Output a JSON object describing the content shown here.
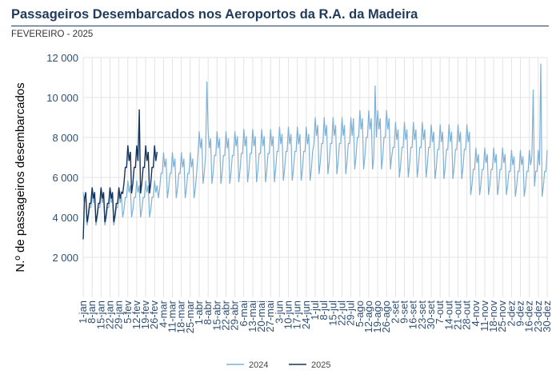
{
  "header": {
    "title": "Passageiros Desembarcados nos Aeroportos da R.A. da Madeira",
    "subtitle": "FEVEREIRO - 2025"
  },
  "colors": {
    "series_2024": "#7fb1d5",
    "series_2025": "#15345b",
    "axis_text": "#2e4f73",
    "grid": "#e3e3e3",
    "title": "#1f3b5a"
  },
  "chart_data": {
    "type": "line",
    "ylabel": "N.º de passageiros desembarcados",
    "xlabel": "",
    "ylim": [
      0,
      12000
    ],
    "yticks": [
      2000,
      4000,
      6000,
      8000,
      10000,
      12000
    ],
    "ytick_labels": [
      "2 000",
      "4 000",
      "6 000",
      "8 000",
      "10 000",
      "12 000"
    ],
    "grid": true,
    "legend_position": "bottom-center",
    "x_unit": "day of year (1-jan to 30-dez)",
    "xtick_days": [
      1,
      8,
      15,
      22,
      29,
      36,
      43,
      50,
      57,
      64,
      71,
      78,
      85,
      92,
      99,
      106,
      113,
      120,
      127,
      134,
      141,
      148,
      155,
      162,
      169,
      176,
      183,
      190,
      197,
      204,
      211,
      218,
      225,
      232,
      239,
      246,
      253,
      260,
      267,
      274,
      281,
      288,
      295,
      302,
      309,
      316,
      323,
      330,
      337,
      344,
      351,
      358,
      365
    ],
    "xtick_labels": [
      "1-jan",
      "8-jan",
      "15-jan",
      "22-jan",
      "29-jan",
      "5-fev",
      "12-fev",
      "19-fev",
      "26-fev",
      "4-mar",
      "11-mar",
      "18-mar",
      "25-mar",
      "1-abr",
      "8-abr",
      "15-abr",
      "22-abr",
      "29-abr",
      "6-mai",
      "13-mai",
      "20-mai",
      "27-mai",
      "3-jun",
      "10-jun",
      "17-jun",
      "24-jun",
      "1-jul",
      "8-jul",
      "15-jul",
      "22-jul",
      "29-jul",
      "5-ago",
      "12-ago",
      "19-ago",
      "26-ago",
      "2-set",
      "9-set",
      "16-set",
      "23-set",
      "30-set",
      "7-out",
      "14-out",
      "21-out",
      "28-out",
      "4-nov",
      "11-nov",
      "18-nov",
      "25-nov",
      "2-dez",
      "9-dez",
      "16-dez",
      "23-dez",
      "30-dez"
    ],
    "weekly_pattern": {
      "description": "daily values; monthly mean times day-of-week factor (Sat, Sun, Mon, Tue, Wed, Thu, Fri)",
      "factors": [
        1.17,
        1.05,
        1.12,
        0.8,
        0.88,
        1.0,
        1.0
      ]
    },
    "series": [
      {
        "name": "2024",
        "color": "#7fb1d5",
        "first_day": 1,
        "last_day": 365,
        "monthly_means": [
          4500,
          5000,
          6200,
          7100,
          7200,
          7300,
          7700,
          8000,
          7500,
          7400,
          6400,
          6300
        ],
        "spikes": [
          {
            "day": 98,
            "value": 10800
          },
          {
            "day": 230,
            "value": 10600
          },
          {
            "day": 354,
            "value": 10400
          },
          {
            "day": 360,
            "value": 11700
          }
        ]
      },
      {
        "name": "2025",
        "color": "#15345b",
        "first_day": 1,
        "last_day": 59,
        "monthly_means": [
          4700,
          6500
        ],
        "spikes": [
          {
            "day": 1,
            "value": 2900
          },
          {
            "day": 45,
            "value": 9400
          }
        ]
      }
    ]
  }
}
